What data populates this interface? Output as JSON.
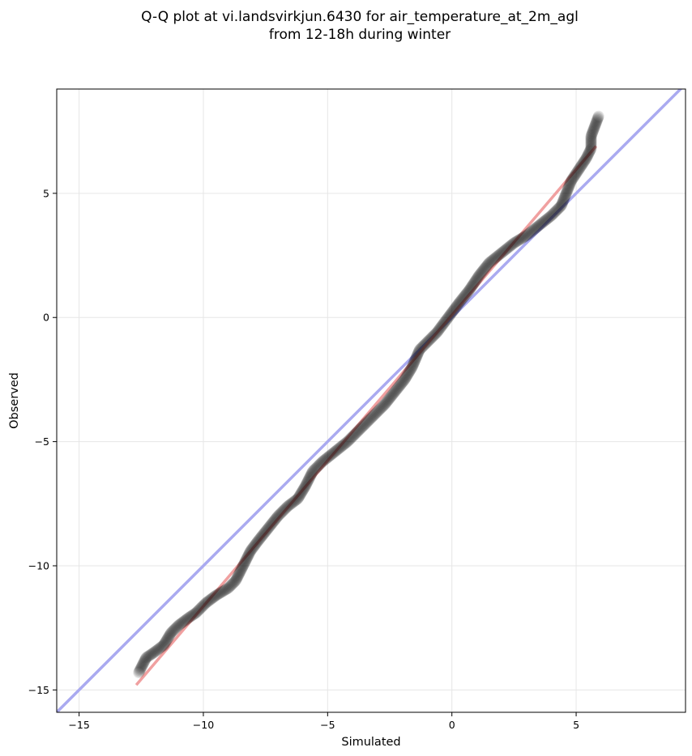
{
  "chart_data": {
    "type": "scatter",
    "title_lines": [
      "Q-Q plot at vi.landsvirkjun.6430 for air_temperature_at_2m_agl",
      "from 12-18h during winter"
    ],
    "xlabel": "Simulated",
    "ylabel": "Observed",
    "xlim": [
      -15.9,
      9.4
    ],
    "ylim": [
      -15.9,
      9.2
    ],
    "x_ticks": [
      {
        "value": -15,
        "label": "−15"
      },
      {
        "value": -10,
        "label": "−10"
      },
      {
        "value": -5,
        "label": "−5"
      },
      {
        "value": 0,
        "label": "0"
      },
      {
        "value": 5,
        "label": "5"
      }
    ],
    "y_ticks": [
      {
        "value": -15,
        "label": "−15"
      },
      {
        "value": -10,
        "label": "−10"
      },
      {
        "value": -5,
        "label": "−5"
      },
      {
        "value": 0,
        "label": "0"
      },
      {
        "value": 5,
        "label": "5"
      }
    ],
    "grid": true,
    "quantile_curve": [
      [
        -12.6,
        -14.3
      ],
      [
        -12.3,
        -13.7
      ],
      [
        -12.0,
        -13.5
      ],
      [
        -11.6,
        -13.2
      ],
      [
        -11.3,
        -12.7
      ],
      [
        -11.0,
        -12.4
      ],
      [
        -10.6,
        -12.1
      ],
      [
        -10.3,
        -11.9
      ],
      [
        -9.9,
        -11.5
      ],
      [
        -9.5,
        -11.2
      ],
      [
        -9.0,
        -10.9
      ],
      [
        -8.7,
        -10.6
      ],
      [
        -8.4,
        -10.0
      ],
      [
        -8.1,
        -9.4
      ],
      [
        -7.8,
        -9.0
      ],
      [
        -7.4,
        -8.5
      ],
      [
        -7.0,
        -8.0
      ],
      [
        -6.6,
        -7.6
      ],
      [
        -6.2,
        -7.3
      ],
      [
        -5.9,
        -6.8
      ],
      [
        -5.6,
        -6.2
      ],
      [
        -5.2,
        -5.8
      ],
      [
        -4.7,
        -5.4
      ],
      [
        -4.2,
        -5.0
      ],
      [
        -3.7,
        -4.5
      ],
      [
        -3.2,
        -4.0
      ],
      [
        -2.7,
        -3.5
      ],
      [
        -2.3,
        -3.0
      ],
      [
        -1.9,
        -2.5
      ],
      [
        -1.6,
        -2.0
      ],
      [
        -1.3,
        -1.3
      ],
      [
        -1.0,
        -1.0
      ],
      [
        -0.6,
        -0.6
      ],
      [
        -0.3,
        -0.2
      ],
      [
        0.0,
        0.2
      ],
      [
        0.3,
        0.6
      ],
      [
        0.7,
        1.1
      ],
      [
        1.1,
        1.7
      ],
      [
        1.5,
        2.2
      ],
      [
        2.0,
        2.6
      ],
      [
        2.5,
        3.0
      ],
      [
        3.0,
        3.3
      ],
      [
        3.5,
        3.7
      ],
      [
        4.0,
        4.1
      ],
      [
        4.4,
        4.5
      ],
      [
        4.6,
        5.0
      ],
      [
        4.8,
        5.5
      ],
      [
        5.0,
        5.8
      ],
      [
        5.2,
        6.1
      ],
      [
        5.4,
        6.4
      ],
      [
        5.6,
        6.8
      ],
      [
        5.6,
        7.3
      ],
      [
        5.9,
        8.1
      ]
    ],
    "reference_line": {
      "name": "1:1 line",
      "color": "#aaaaf0",
      "from": [
        -15.9,
        -15.9
      ],
      "to": [
        9.4,
        9.4
      ]
    },
    "fit_line": {
      "name": "fit",
      "color": "#f0a0a0",
      "from": [
        -12.7,
        -14.8
      ],
      "to": [
        5.8,
        6.9
      ]
    },
    "point_color": "#000000"
  }
}
